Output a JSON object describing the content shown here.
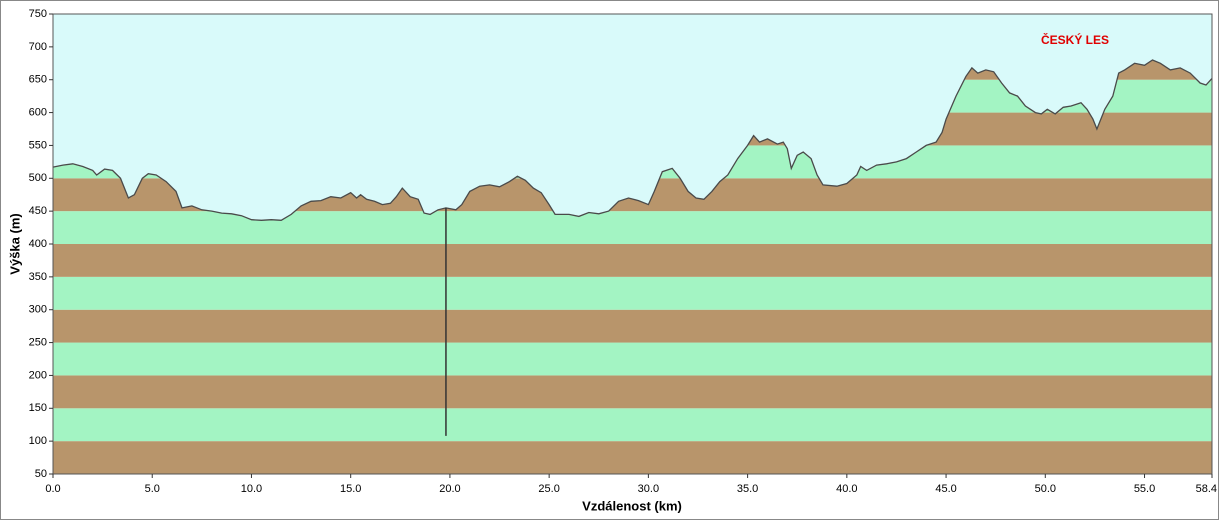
{
  "chart_data": {
    "type": "area",
    "annotation": "ČESKÝ LES",
    "x_label": "Vzdálenost   (km)",
    "y_label": "Výška (m)",
    "xlim": [
      0,
      58.4
    ],
    "ylim": [
      50,
      750
    ],
    "xticks": [
      {
        "value": 0,
        "label": "0.0"
      },
      {
        "value": 5,
        "label": "5.0"
      },
      {
        "value": 10,
        "label": "10.0"
      },
      {
        "value": 15,
        "label": "15.0"
      },
      {
        "value": 20,
        "label": "20.0"
      },
      {
        "value": 25,
        "label": "25.0"
      },
      {
        "value": 30,
        "label": "30.0"
      },
      {
        "value": 35,
        "label": "35.0"
      },
      {
        "value": 40,
        "label": "40.0"
      },
      {
        "value": 45,
        "label": "45.0"
      },
      {
        "value": 50,
        "label": "50.0"
      },
      {
        "value": 55,
        "label": "55.0"
      },
      {
        "value": 58.4,
        "label": "58.4"
      }
    ],
    "yticks": [
      50,
      100,
      150,
      200,
      250,
      300,
      350,
      400,
      450,
      500,
      550,
      600,
      650,
      700,
      750
    ],
    "band_colors": [
      "#b8956b",
      "#a3f4c3"
    ],
    "sky_color": "#d9fafa",
    "line_color": "#4a4a4a",
    "cursor": {
      "x": 19.8,
      "values": [
        108,
        455
      ]
    },
    "x": [
      0,
      0.5,
      1,
      1.5,
      2,
      2.2,
      2.6,
      3,
      3.4,
      3.8,
      4.1,
      4.5,
      4.8,
      5.2,
      5.7,
      6.2,
      6.5,
      7,
      7.5,
      8,
      8.5,
      9,
      9.5,
      10,
      10.5,
      11,
      11.5,
      12,
      12.5,
      13,
      13.5,
      14,
      14.5,
      15,
      15.3,
      15.5,
      15.8,
      16.2,
      16.6,
      17,
      17.3,
      17.6,
      18,
      18.4,
      18.7,
      19,
      19.4,
      19.8,
      20.3,
      20.6,
      21,
      21.5,
      22,
      22.5,
      23,
      23.4,
      23.8,
      24.2,
      24.6,
      25,
      25.3,
      26,
      26.5,
      27,
      27.5,
      28,
      28.5,
      29,
      29.5,
      30,
      30.3,
      30.7,
      31.2,
      31.6,
      32,
      32.4,
      32.8,
      33.2,
      33.6,
      34,
      34.5,
      35,
      35.3,
      35.6,
      36,
      36.5,
      36.8,
      37,
      37.2,
      37.5,
      37.8,
      38.2,
      38.5,
      38.8,
      39.5,
      40,
      40.5,
      40.7,
      41,
      41.5,
      42,
      42.5,
      43,
      43.5,
      44,
      44.5,
      44.8,
      45,
      45.5,
      46,
      46.3,
      46.6,
      47,
      47.4,
      47.8,
      48.2,
      48.6,
      49,
      49.5,
      49.8,
      50.1,
      50.5,
      50.9,
      51.3,
      51.8,
      52.1,
      52.4,
      52.6,
      53,
      53.4,
      53.7,
      54,
      54.5,
      55,
      55.4,
      55.8,
      56.3,
      56.8,
      57.3,
      57.8,
      58.1,
      58.4
    ],
    "values": [
      517,
      520,
      522,
      518,
      512,
      505,
      514,
      512,
      500,
      470,
      475,
      500,
      507,
      505,
      495,
      480,
      455,
      458,
      452,
      450,
      447,
      446,
      443,
      437,
      436,
      437,
      436,
      445,
      458,
      465,
      466,
      472,
      470,
      478,
      470,
      475,
      468,
      465,
      460,
      462,
      472,
      485,
      472,
      468,
      447,
      445,
      452,
      455,
      452,
      460,
      480,
      488,
      490,
      487,
      495,
      503,
      497,
      485,
      478,
      460,
      445,
      445,
      442,
      448,
      446,
      450,
      465,
      470,
      466,
      460,
      480,
      510,
      515,
      500,
      480,
      470,
      468,
      480,
      495,
      505,
      530,
      550,
      565,
      555,
      560,
      552,
      555,
      545,
      515,
      535,
      540,
      530,
      505,
      490,
      488,
      492,
      505,
      518,
      512,
      520,
      522,
      525,
      530,
      540,
      550,
      555,
      570,
      590,
      625,
      655,
      668,
      660,
      665,
      662,
      645,
      630,
      625,
      610,
      600,
      598,
      605,
      598,
      608,
      610,
      615,
      605,
      590,
      575,
      605,
      625,
      660,
      665,
      675,
      672,
      680,
      675,
      665,
      668,
      660,
      645,
      642,
      652
    ]
  }
}
